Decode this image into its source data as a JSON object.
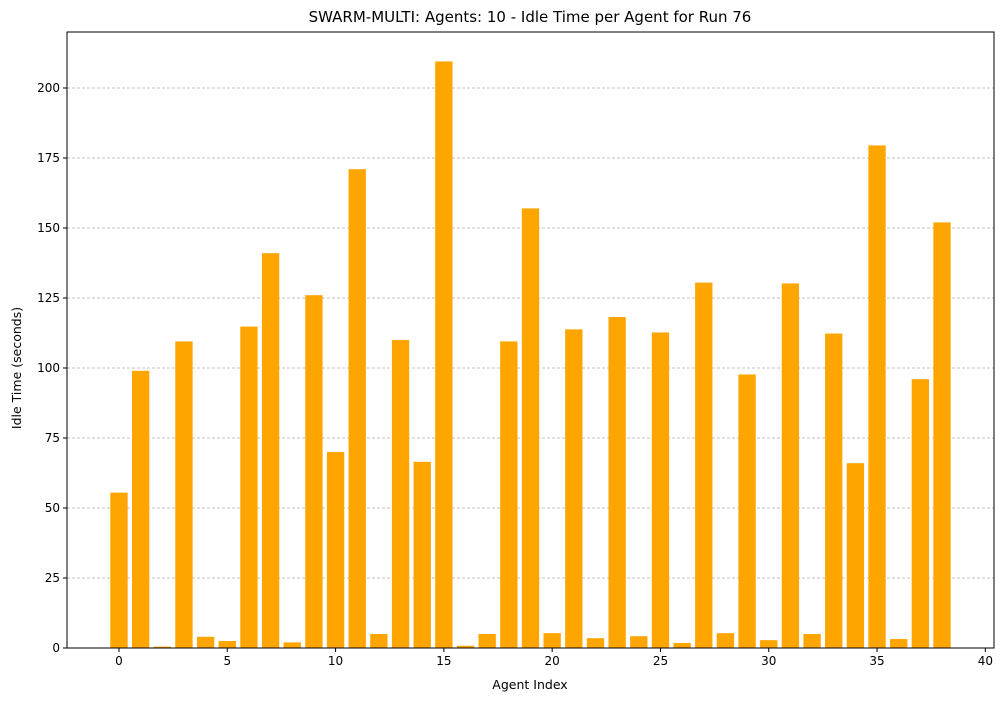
{
  "chart_data": {
    "type": "bar",
    "title": "SWARM-MULTI: Agents: 10 - Idle Time per Agent for Run 76",
    "xlabel": "Agent Index",
    "ylabel": "Idle Time (seconds)",
    "x": [
      0,
      1,
      2,
      3,
      4,
      5,
      6,
      7,
      8,
      9,
      10,
      11,
      12,
      13,
      14,
      15,
      16,
      17,
      18,
      19,
      20,
      21,
      22,
      23,
      24,
      25,
      26,
      27,
      28,
      29,
      30,
      31,
      32,
      33,
      34,
      35,
      36,
      37,
      38
    ],
    "values": [
      55.5,
      99,
      0.5,
      109.5,
      4,
      2.5,
      114.8,
      141,
      2,
      126,
      70,
      171,
      5,
      110,
      66.5,
      209.5,
      0.8,
      5,
      109.5,
      157,
      5.3,
      113.8,
      3.5,
      118.2,
      4.2,
      112.7,
      1.8,
      130.5,
      5.3,
      97.7,
      2.8,
      130.2,
      5,
      112.3,
      66,
      179.5,
      3.2,
      96,
      152
    ],
    "xlim": [
      -2.4,
      40.4
    ],
    "ylim": [
      0,
      220
    ],
    "xticks": [
      0,
      5,
      10,
      15,
      20,
      25,
      30,
      35,
      40
    ],
    "yticks": [
      0,
      25,
      50,
      75,
      100,
      125,
      150,
      175,
      200
    ],
    "grid": "horizontal dashed",
    "bar_color": "#ffa500",
    "grid_color": "#b0b0b0"
  }
}
